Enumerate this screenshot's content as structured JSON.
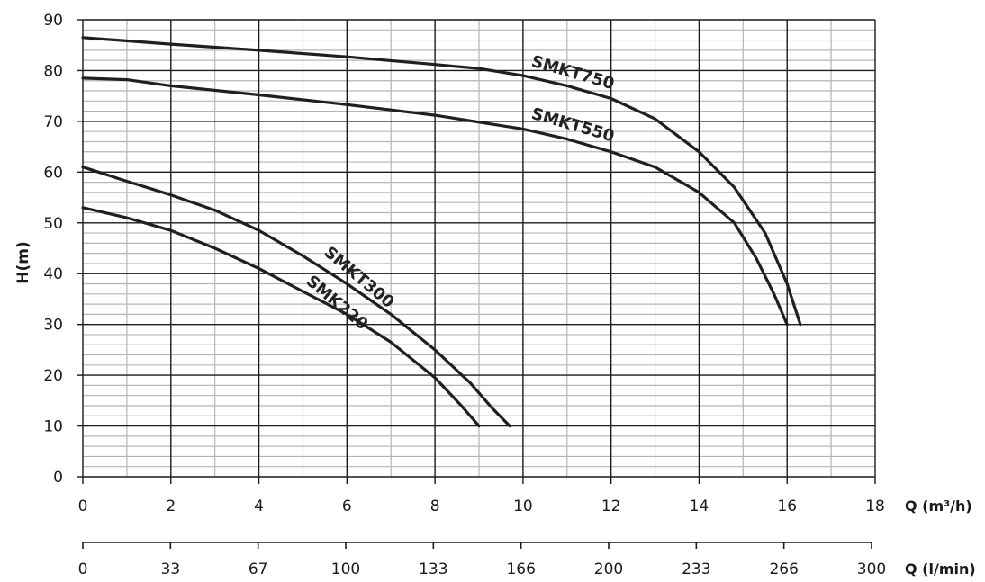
{
  "chart_data": {
    "type": "line",
    "title": "",
    "ylabel": "H(m)",
    "xlabel": "Q (m³/h)",
    "x2label": "Q (l/min)",
    "xlim": [
      0,
      18
    ],
    "ylim": [
      0,
      90
    ],
    "x_ticks": [
      "0",
      "2",
      "4",
      "6",
      "8",
      "10",
      "12",
      "14",
      "16",
      "18"
    ],
    "x2_ticks": [
      "0",
      "33",
      "67",
      "100",
      "133",
      "166",
      "200",
      "233",
      "266",
      "300"
    ],
    "y_ticks": [
      "0",
      "10",
      "20",
      "30",
      "40",
      "50",
      "60",
      "70",
      "80",
      "90"
    ],
    "grid": true,
    "colors": {
      "line": "#1f1f1f",
      "major_grid": "#1a1a1a",
      "minor_grid": "#b5b5b5"
    },
    "series": [
      {
        "name": "SMKT750",
        "x": [
          0,
          2,
          4,
          6,
          8,
          9,
          10,
          11,
          12,
          13,
          14,
          14.8,
          15.5,
          16,
          16.3
        ],
        "y": [
          86.5,
          85.2,
          84,
          82.7,
          81.2,
          80.4,
          79,
          77,
          74.5,
          70.5,
          64,
          57,
          48,
          38,
          30
        ]
      },
      {
        "name": "SMKT550",
        "x": [
          0,
          1,
          2,
          4,
          6,
          8,
          10,
          11,
          12,
          13,
          14,
          14.8,
          15.3,
          15.7,
          16
        ],
        "y": [
          78.5,
          78.2,
          77,
          75.2,
          73.3,
          71.2,
          68.5,
          66.5,
          64,
          61,
          56,
          50,
          43,
          36,
          30
        ]
      },
      {
        "name": "SMKT300",
        "x": [
          0,
          1,
          2,
          3,
          4,
          5,
          6,
          7,
          8,
          8.8,
          9.3,
          9.7
        ],
        "y": [
          61,
          58.2,
          55.5,
          52.5,
          48.5,
          43.5,
          38,
          32,
          25,
          18.5,
          13.5,
          10
        ]
      },
      {
        "name": "SMK220",
        "x": [
          0,
          1,
          2,
          3,
          4,
          5,
          6,
          7,
          8,
          8.6,
          9
        ],
        "y": [
          53,
          51,
          48.5,
          45,
          41,
          36.5,
          32,
          26.5,
          19.5,
          14,
          10
        ]
      }
    ]
  }
}
